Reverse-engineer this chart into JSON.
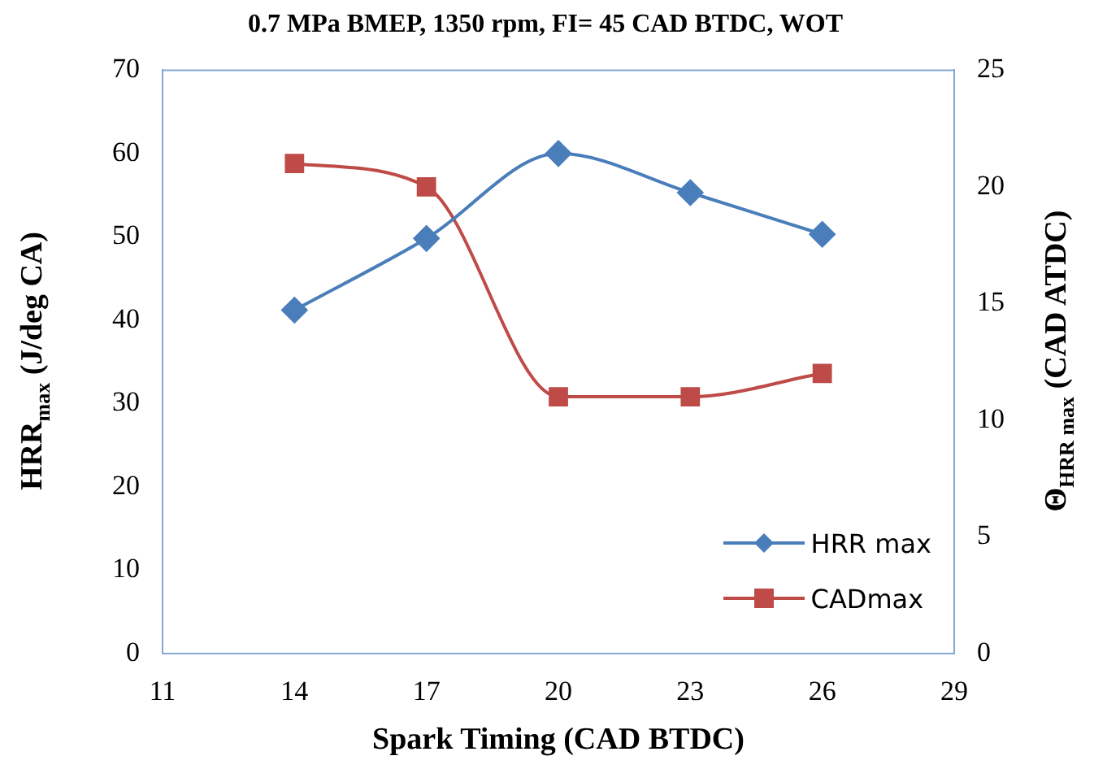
{
  "chart_data": {
    "type": "line",
    "title": "0.7 MPa BMEP, 1350 rpm, FI= 45 CAD BTDC, WOT",
    "xlabel": "Spark Timing (CAD BTDC)",
    "ylabel": "HRR$_{max}$ (J/deg CA)",
    "y2label": "Θ$_{HRR max}$ (CAD ATDC)",
    "x": [
      14,
      17,
      20,
      23,
      26
    ],
    "series": [
      {
        "name": "HRR max",
        "color": "#4a7ebb",
        "marker": "diamond",
        "values": [
          41.2,
          49.8,
          60,
          55.3,
          50.3
        ]
      },
      {
        "name": "CADmax",
        "color": "#be4b48",
        "marker": "square",
        "axis": "y2",
        "values": [
          21,
          20,
          11,
          11,
          12
        ]
      }
    ],
    "xlim": [
      11,
      29
    ],
    "xticks": [
      11,
      14,
      17,
      20,
      23,
      26,
      29
    ],
    "ylim": [
      0,
      70
    ],
    "yticks": [
      0,
      10,
      20,
      30,
      40,
      50,
      60,
      70
    ],
    "y2lim": [
      0,
      25
    ],
    "y2ticks": [
      0,
      5,
      10,
      15,
      20,
      25
    ],
    "grid": false,
    "legend": "bottom right"
  }
}
